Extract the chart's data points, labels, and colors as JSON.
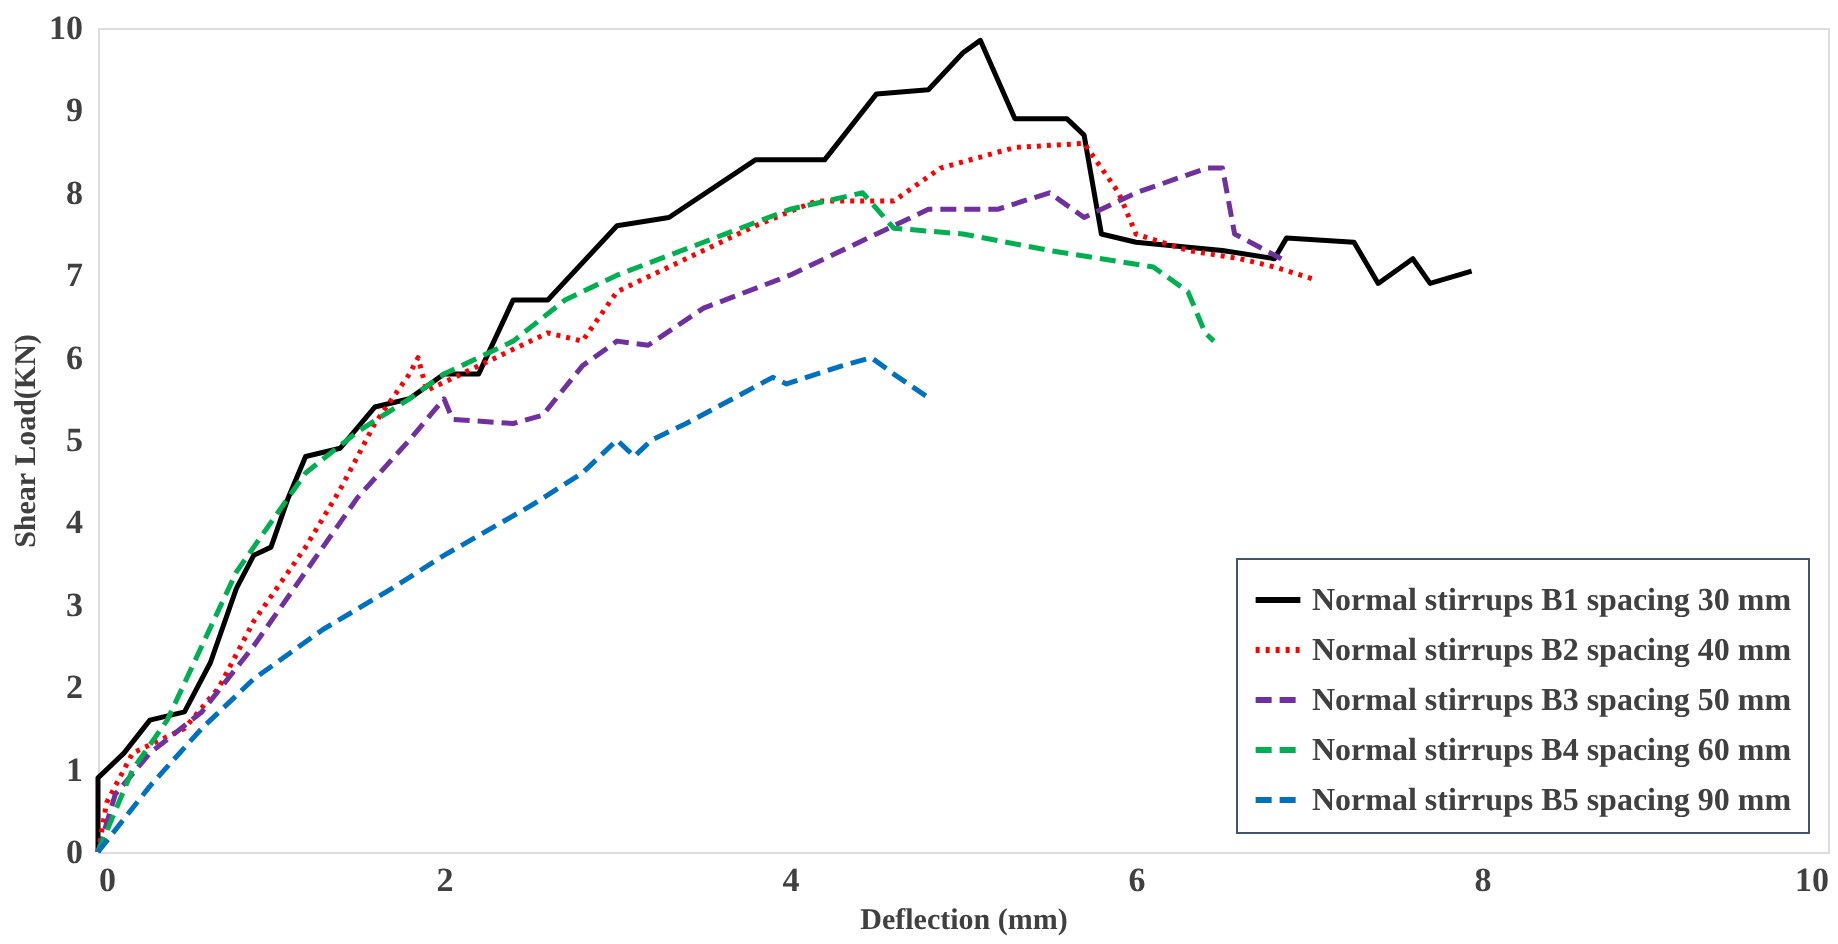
{
  "chart_data": {
    "type": "line",
    "xlabel": "Deflection (mm)",
    "ylabel": "Shear Load(KN)",
    "xlim": [
      0,
      10
    ],
    "ylim": [
      0,
      10
    ],
    "xticks": [
      0,
      2,
      4,
      6,
      8,
      10
    ],
    "yticks": [
      0,
      1,
      2,
      3,
      4,
      5,
      6,
      7,
      8,
      9,
      10
    ],
    "grid": false,
    "legend": "bottom right",
    "marker": "none",
    "series": [
      {
        "name": "Normal stirrups B1 spacing 30 mm",
        "color": "#000000",
        "line_style": "solid",
        "x": [
          0,
          0,
          0.15,
          0.3,
          0.5,
          0.65,
          0.8,
          0.9,
          1.0,
          1.1,
          1.2,
          1.4,
          1.6,
          1.8,
          2.0,
          2.2,
          2.4,
          2.6,
          3.0,
          3.3,
          3.8,
          4.2,
          4.5,
          4.8,
          5.0,
          5.1,
          5.3,
          5.6,
          5.7,
          5.8,
          6.0,
          6.5,
          6.8,
          6.87,
          7.26,
          7.4,
          7.6,
          7.7,
          7.94
        ],
        "values": [
          0,
          0.9,
          1.2,
          1.6,
          1.7,
          2.3,
          3.2,
          3.6,
          3.7,
          4.3,
          4.8,
          4.9,
          5.4,
          5.5,
          5.8,
          5.8,
          6.7,
          6.7,
          7.6,
          7.7,
          8.4,
          8.4,
          9.2,
          9.25,
          9.7,
          9.85,
          8.9,
          8.9,
          8.7,
          7.5,
          7.4,
          7.3,
          7.2,
          7.45,
          7.4,
          6.9,
          7.2,
          6.9,
          7.05
        ]
      },
      {
        "name": "Normal stirrups B2 spacing 40 mm",
        "color": "#ff0000",
        "line_style": "dotted",
        "x": [
          0,
          0.05,
          0.2,
          0.5,
          0.7,
          0.9,
          1.2,
          1.4,
          1.6,
          1.8,
          1.85,
          1.9,
          2.2,
          2.6,
          2.8,
          3.0,
          3.4,
          3.8,
          4.15,
          4.6,
          4.87,
          5.3,
          5.7,
          5.9,
          6.0,
          6.3,
          6.6,
          6.8,
          7.03
        ],
        "values": [
          0,
          0.6,
          1.2,
          1.5,
          2.0,
          2.8,
          3.7,
          4.4,
          5.2,
          5.8,
          6.0,
          5.6,
          5.9,
          6.3,
          6.2,
          6.8,
          7.2,
          7.6,
          7.9,
          7.9,
          8.3,
          8.55,
          8.6,
          8.0,
          7.5,
          7.3,
          7.2,
          7.1,
          6.95
        ]
      },
      {
        "name": "Normal stirrups B3 spacing 50 mm",
        "color": "#7030a0",
        "line_style": "dashed",
        "x": [
          0,
          0.1,
          0.3,
          0.6,
          0.9,
          1.2,
          1.5,
          1.8,
          2.0,
          2.05,
          2.4,
          2.57,
          2.8,
          3.0,
          3.18,
          3.5,
          4.0,
          4.5,
          4.8,
          5.2,
          5.5,
          5.7,
          6.0,
          6.41,
          6.5,
          6.57,
          6.84
        ],
        "values": [
          0,
          0.7,
          1.2,
          1.7,
          2.5,
          3.4,
          4.3,
          5.0,
          5.5,
          5.25,
          5.2,
          5.3,
          5.9,
          6.2,
          6.15,
          6.6,
          7.0,
          7.5,
          7.8,
          7.8,
          8.0,
          7.7,
          8.0,
          8.3,
          8.3,
          7.5,
          7.2
        ]
      },
      {
        "name": "Normal stirrups B4 spacing 60 mm",
        "color": "#00b050",
        "line_style": "dashed",
        "x": [
          0,
          0.2,
          0.4,
          0.6,
          0.8,
          1.0,
          1.2,
          1.5,
          1.8,
          2.0,
          2.4,
          2.7,
          3.0,
          3.5,
          4.0,
          4.42,
          4.6,
          5.0,
          5.5,
          5.8,
          6.1,
          6.3,
          6.4,
          6.45
        ],
        "values": [
          0,
          1.0,
          1.6,
          2.5,
          3.4,
          4.0,
          4.6,
          5.1,
          5.5,
          5.8,
          6.2,
          6.7,
          7.0,
          7.4,
          7.8,
          8.0,
          7.57,
          7.5,
          7.3,
          7.2,
          7.1,
          6.8,
          6.3,
          6.2
        ]
      },
      {
        "name": "Normal stirrups B5 spacing 90 mm",
        "color": "#0070c0",
        "line_style": "dashed",
        "x": [
          0,
          0.3,
          0.6,
          0.9,
          1.3,
          1.7,
          2.0,
          2.5,
          2.8,
          3.0,
          3.1,
          3.2,
          3.4,
          3.9,
          3.98,
          4.3,
          4.47,
          4.6,
          4.81
        ],
        "values": [
          0,
          0.8,
          1.5,
          2.1,
          2.7,
          3.2,
          3.6,
          4.2,
          4.6,
          5.0,
          4.8,
          5.0,
          5.2,
          5.76,
          5.68,
          5.9,
          6.0,
          5.8,
          5.5
        ]
      }
    ]
  }
}
